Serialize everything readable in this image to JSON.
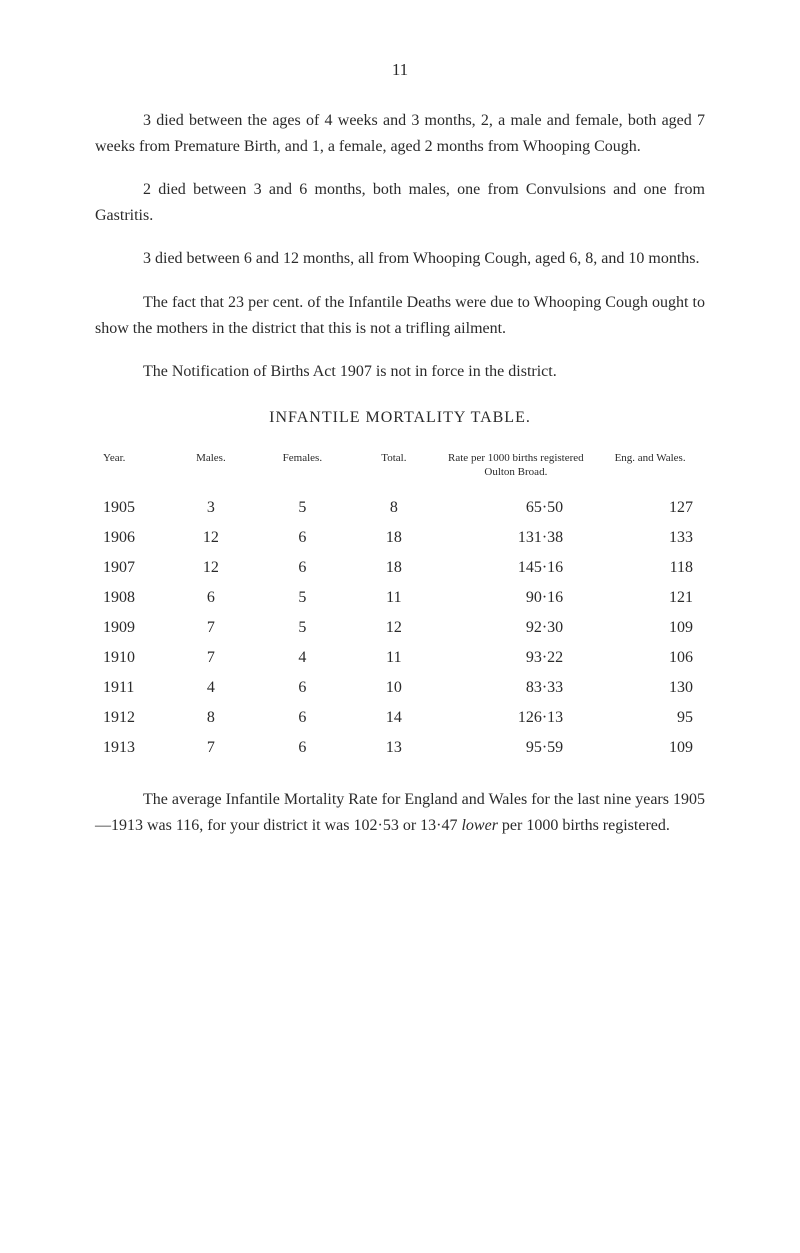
{
  "pageNumber": "11",
  "paragraphs": {
    "p1": "3 died between the ages of 4 weeks and 3 months, 2, a male and female, both aged 7 weeks from Premature Birth, and 1, a female, aged 2 months from Whooping Cough.",
    "p2": "2 died between 3 and 6 months, both males, one from Convulsions and one from Gastritis.",
    "p3": "3 died between 6 and 12 months, all from Whooping Cough, aged 6, 8, and 10 months.",
    "p4": "The fact that 23 per cent. of the Infantile Deaths were due to Whooping Cough ought to show the mothers in the district that this is not a trifling ailment.",
    "p5": "The Notification of Births Act 1907 is not in force in the district.",
    "p6_pre": "The average Infantile Mortality Rate for England and Wales for the last nine years 1905—1913 was 116, for your district it was 102·53 or 13·47 ",
    "p6_italic": "lower",
    "p6_post": " per 1000 births registered."
  },
  "table": {
    "title": "INFANTILE MORTALITY TABLE.",
    "headers": {
      "year": "Year.",
      "males": "Males.",
      "females": "Females.",
      "total": "Total.",
      "rate": "Rate per 1000 births registered Oulton Broad.",
      "engWales": "Eng. and Wales."
    },
    "rows": [
      {
        "year": "1905",
        "males": "3",
        "females": "5",
        "total": "8",
        "rate": "65·50",
        "engWales": "127"
      },
      {
        "year": "1906",
        "males": "12",
        "females": "6",
        "total": "18",
        "rate": "131·38",
        "engWales": "133"
      },
      {
        "year": "1907",
        "males": "12",
        "females": "6",
        "total": "18",
        "rate": "145·16",
        "engWales": "118"
      },
      {
        "year": "1908",
        "males": "6",
        "females": "5",
        "total": "11",
        "rate": "90·16",
        "engWales": "121"
      },
      {
        "year": "1909",
        "males": "7",
        "females": "5",
        "total": "12",
        "rate": "92·30",
        "engWales": "109"
      },
      {
        "year": "1910",
        "males": "7",
        "females": "4",
        "total": "11",
        "rate": "93·22",
        "engWales": "106"
      },
      {
        "year": "1911",
        "males": "4",
        "females": "6",
        "total": "10",
        "rate": "83·33",
        "engWales": "130"
      },
      {
        "year": "1912",
        "males": "8",
        "females": "6",
        "total": "14",
        "rate": "126·13",
        "engWales": "95"
      },
      {
        "year": "1913",
        "males": "7",
        "females": "6",
        "total": "13",
        "rate": "95·59",
        "engWales": "109"
      }
    ]
  }
}
